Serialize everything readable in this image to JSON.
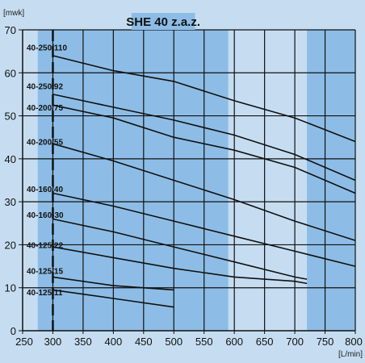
{
  "chart_data": {
    "type": "line",
    "title": "SHE 40 z.a.z.",
    "ylabel": "[mwk]",
    "xlabel": "[L/min]",
    "xlim": [
      250,
      800
    ],
    "ylim": [
      0,
      70
    ],
    "xticks": [
      250,
      300,
      350,
      400,
      450,
      500,
      550,
      600,
      650,
      700,
      750,
      800
    ],
    "yticks": [
      0,
      10,
      20,
      30,
      40,
      50,
      60,
      70
    ],
    "grid": true,
    "reference_line_x": 300,
    "colors": {
      "band_dark": "#8dbde6",
      "band_light": "#c6ddf1",
      "grid": "#111111",
      "curve": "#111111"
    },
    "series": [
      {
        "name": "40-250/110",
        "label_y": 66,
        "x": [
          300,
          400,
          500,
          600,
          700,
          800
        ],
        "y": [
          64,
          60.5,
          58,
          53.5,
          49.5,
          44
        ]
      },
      {
        "name": "40-250/92",
        "label_y": 57,
        "x": [
          300,
          400,
          500,
          600,
          700,
          800
        ],
        "y": [
          55,
          52,
          49,
          45.5,
          41,
          35
        ]
      },
      {
        "name": "40-200/75",
        "label_y": 52,
        "x": [
          300,
          400,
          500,
          600,
          700,
          800
        ],
        "y": [
          52.5,
          49.5,
          45,
          42,
          38,
          32
        ]
      },
      {
        "name": "40-200/55",
        "label_y": 44,
        "x": [
          300,
          400,
          500,
          600,
          700,
          800
        ],
        "y": [
          43.5,
          39.5,
          35,
          30.5,
          25.5,
          21
        ]
      },
      {
        "name": "40-160/40",
        "label_y": 33,
        "x": [
          300,
          400,
          500,
          600,
          700,
          800
        ],
        "y": [
          32,
          29,
          25.5,
          22,
          18.5,
          15
        ]
      },
      {
        "name": "40-160-30",
        "label_y": 27,
        "x": [
          300,
          400,
          500,
          600,
          700,
          720
        ],
        "y": [
          26,
          23,
          19.5,
          16,
          12.5,
          12
        ]
      },
      {
        "name": "40-125/22",
        "label_y": 20,
        "x": [
          300,
          400,
          500,
          600,
          700,
          720
        ],
        "y": [
          19.5,
          17,
          14.5,
          12.5,
          11.5,
          11
        ]
      },
      {
        "name": "40-125/15",
        "label_y": 14,
        "x": [
          300,
          400,
          500
        ],
        "y": [
          12.5,
          10.5,
          9.5
        ]
      },
      {
        "name": "40-125/11",
        "label_y": 9,
        "x": [
          300,
          400,
          500
        ],
        "y": [
          9.5,
          7.5,
          5.5
        ]
      }
    ]
  }
}
